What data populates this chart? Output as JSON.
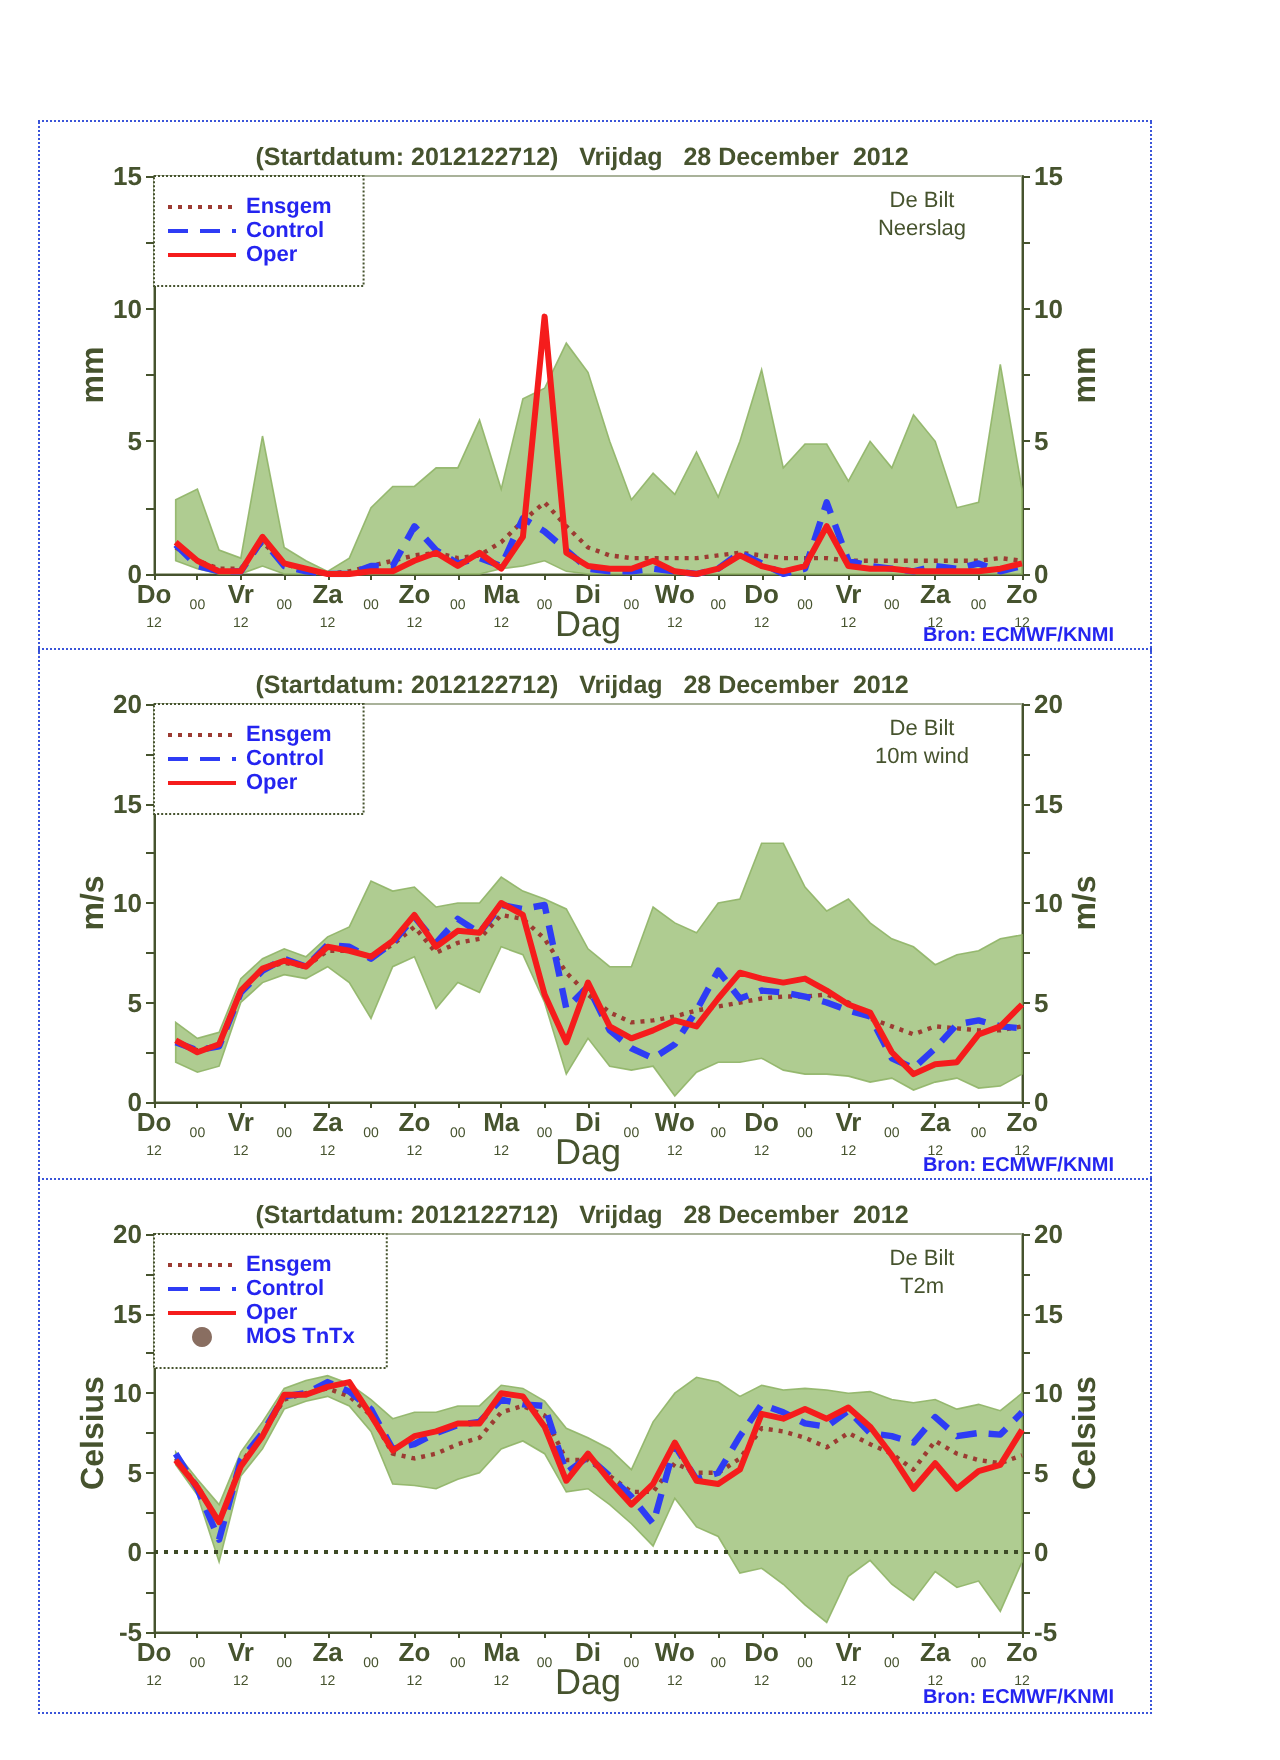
{
  "chart_data": [
    {
      "type": "line",
      "title": "(Startdatum: 2012122712)   Vrijdag   28 December  2012",
      "xlabel": "Dag",
      "ylabel": "mm",
      "y2label": "mm",
      "annotations": [
        "De Bilt",
        "Neerslag",
        "Bron: ECMWF/KNMI"
      ],
      "legend": "top left",
      "categories": [
        "Do\n12",
        null,
        "00",
        null,
        "Vr\n12",
        null,
        "00",
        null,
        "Za\n12",
        null,
        "00",
        null,
        "Zo\n12",
        null,
        "00",
        null,
        "Ma\n12",
        null,
        "00",
        null,
        "Di",
        null,
        "00",
        null,
        "Wo\n12",
        null,
        "00",
        null,
        "Do\n12",
        null,
        "00",
        null,
        "Vr\n12",
        null,
        "00",
        null,
        "Za\n12",
        null,
        "00",
        null,
        "Zo\n12"
      ],
      "ylim": [
        0,
        15
      ],
      "yticks": [
        0,
        {
          "value": 2.5,
          "label": null
        },
        5,
        {
          "value": 7.5,
          "label": null
        },
        10,
        {
          "value": 12.5,
          "label": null
        },
        15
      ],
      "y2lim": [
        0,
        15
      ],
      "y2ticks": [
        0,
        {
          "value": 2.5,
          "label": null
        },
        5,
        {
          "value": 7.5,
          "label": null
        },
        10,
        {
          "value": 12.5,
          "label": null
        },
        15
      ],
      "series": [
        {
          "name": "Ensgem",
          "color": "#9c3b32",
          "line_style": "dotted",
          "values": [
            null,
            1.0,
            0.5,
            0.2,
            0.2,
            1.2,
            0.4,
            0.1,
            0.0,
            0.1,
            0.3,
            0.5,
            0.7,
            0.8,
            0.6,
            0.7,
            1.2,
            2.0,
            2.7,
            1.8,
            1.0,
            0.7,
            0.6,
            0.6,
            0.6,
            0.6,
            0.7,
            0.8,
            0.7,
            0.6,
            0.6,
            0.6,
            0.5,
            0.5,
            0.5,
            0.5,
            0.5,
            0.5,
            0.5,
            0.6,
            0.5
          ],
          "lower": [
            null,
            0.5,
            0.2,
            0,
            0,
            0.3,
            0,
            0,
            0,
            0,
            0,
            0,
            0,
            0,
            0,
            0,
            0.2,
            0.3,
            0.5,
            0.1,
            0,
            0,
            0,
            0,
            0,
            0,
            0,
            0,
            0,
            0,
            0,
            0,
            0,
            0,
            0,
            0,
            0,
            0,
            0,
            0,
            0
          ],
          "upper": [
            null,
            2.8,
            3.2,
            0.9,
            0.6,
            5.2,
            1.0,
            0.5,
            0.1,
            0.6,
            2.5,
            3.3,
            3.3,
            4.0,
            4.0,
            5.8,
            3.2,
            6.6,
            7.0,
            8.7,
            7.6,
            5.0,
            2.8,
            3.8,
            3.0,
            4.6,
            2.9,
            5.0,
            7.7,
            4.0,
            4.9,
            4.9,
            3.5,
            5.0,
            4.0,
            6.0,
            5.0,
            2.5,
            2.7,
            7.9,
            3.2
          ]
        },
        {
          "name": "Control",
          "color": "#2e3cf5",
          "line_style": "dashed",
          "values": [
            null,
            1.1,
            0.3,
            0.1,
            0.1,
            1.3,
            0.3,
            0.1,
            0.0,
            0.0,
            0.3,
            0.3,
            1.8,
            0.9,
            0.4,
            0.6,
            0.3,
            2.1,
            1.6,
            0.9,
            0.2,
            0.1,
            0.1,
            0.2,
            0.1,
            0.0,
            0.2,
            0.8,
            0.4,
            0.0,
            0.2,
            2.7,
            0.5,
            0.3,
            0.2,
            0.1,
            0.3,
            0.2,
            0.4,
            0.1,
            0.3
          ]
        },
        {
          "name": "Oper",
          "color": "#f51c1c",
          "line_style": "solid",
          "values": [
            null,
            1.2,
            0.5,
            0.1,
            0.1,
            1.4,
            0.4,
            0.2,
            0.0,
            0.0,
            0.1,
            0.1,
            0.5,
            0.8,
            0.3,
            0.8,
            0.2,
            1.4,
            9.7,
            0.8,
            0.3,
            0.2,
            0.2,
            0.5,
            0.1,
            0.0,
            0.2,
            0.7,
            0.3,
            0.1,
            0.3,
            1.8,
            0.3,
            0.2,
            0.2,
            0.1,
            0.1,
            0.1,
            0.1,
            0.2,
            0.4
          ]
        }
      ]
    },
    {
      "type": "line",
      "title": "(Startdatum: 2012122712)   Vrijdag   28 December  2012",
      "xlabel": "Dag",
      "ylabel": "m/s",
      "y2label": "m/s",
      "annotations": [
        "De Bilt",
        "10m wind",
        "Bron: ECMWF/KNMI"
      ],
      "legend": "top left",
      "categories": [
        "Do\n12",
        null,
        "00",
        null,
        "Vr\n12",
        null,
        "00",
        null,
        "Za\n12",
        null,
        "00",
        null,
        "Zo\n12",
        null,
        "00",
        null,
        "Ma\n12",
        null,
        "00",
        null,
        "Di",
        null,
        "00",
        null,
        "Wo\n12",
        null,
        "00",
        null,
        "Do\n12",
        null,
        "00",
        null,
        "Vr\n12",
        null,
        "00",
        null,
        "Za\n12",
        null,
        "00",
        null,
        "Zo\n12"
      ],
      "ylim": [
        0,
        20
      ],
      "yticks": [
        0,
        {
          "value": 2.5,
          "label": null
        },
        5,
        {
          "value": 7.5,
          "label": null
        },
        10,
        {
          "value": 12.5,
          "label": null
        },
        15,
        {
          "value": 17.5,
          "label": null
        },
        20
      ],
      "y2lim": [
        0,
        20
      ],
      "y2ticks": [
        0,
        {
          "value": 2.5,
          "label": null
        },
        5,
        {
          "value": 7.5,
          "label": null
        },
        10,
        {
          "value": 12.5,
          "label": null
        },
        15,
        {
          "value": 17.5,
          "label": null
        },
        20
      ],
      "series": [
        {
          "name": "Ensgem",
          "color": "#9c3b32",
          "line_style": "dotted",
          "values": [
            null,
            3.0,
            2.6,
            2.8,
            5.6,
            6.7,
            7.0,
            6.8,
            7.6,
            7.6,
            7.3,
            7.9,
            8.8,
            7.5,
            8.0,
            8.2,
            9.4,
            9.2,
            8.2,
            6.5,
            5.4,
            4.5,
            4.0,
            4.1,
            4.3,
            4.6,
            4.8,
            5.0,
            5.2,
            5.3,
            5.3,
            5.4,
            5.0,
            4.2,
            3.8,
            3.4,
            3.8,
            3.7,
            3.6,
            3.6,
            3.8
          ],
          "lower": [
            null,
            2.0,
            1.5,
            1.8,
            5.0,
            6.0,
            6.4,
            6.2,
            6.8,
            6.0,
            4.2,
            6.8,
            7.3,
            4.7,
            6.0,
            5.5,
            7.8,
            7.4,
            5.0,
            1.4,
            3.2,
            1.8,
            1.6,
            1.8,
            0.3,
            1.5,
            2.0,
            2.0,
            2.2,
            1.6,
            1.4,
            1.4,
            1.3,
            1.0,
            1.2,
            0.6,
            1.0,
            1.2,
            0.7,
            0.8,
            1.4
          ],
          "upper": [
            null,
            4.0,
            3.2,
            3.5,
            6.2,
            7.2,
            7.7,
            7.3,
            8.3,
            8.8,
            11.1,
            10.6,
            10.8,
            9.8,
            10.0,
            10.0,
            11.3,
            10.6,
            10.2,
            9.7,
            7.7,
            6.8,
            6.8,
            9.8,
            9.0,
            8.5,
            10.0,
            10.2,
            13.0,
            13.0,
            10.8,
            9.6,
            10.2,
            9.0,
            8.2,
            7.8,
            6.9,
            7.4,
            7.6,
            8.2,
            8.4
          ]
        },
        {
          "name": "Control",
          "color": "#2e3cf5",
          "line_style": "dashed",
          "values": [
            null,
            3.0,
            2.6,
            2.8,
            5.5,
            6.6,
            7.2,
            6.8,
            7.9,
            7.8,
            7.2,
            8.0,
            9.3,
            8.0,
            9.2,
            8.5,
            9.9,
            9.7,
            9.9,
            4.7,
            5.8,
            3.6,
            2.7,
            2.2,
            2.9,
            4.6,
            6.6,
            5.2,
            5.6,
            5.5,
            5.3,
            5.0,
            4.6,
            4.3,
            2.2,
            1.7,
            2.7,
            3.9,
            4.1,
            3.8,
            3.7
          ]
        },
        {
          "name": "Oper",
          "color": "#f51c1c",
          "line_style": "solid",
          "values": [
            null,
            3.1,
            2.5,
            2.9,
            5.6,
            6.7,
            7.1,
            6.8,
            7.8,
            7.6,
            7.3,
            8.1,
            9.4,
            7.8,
            8.6,
            8.5,
            10.0,
            9.4,
            5.4,
            3.0,
            6.0,
            3.8,
            3.2,
            3.6,
            4.1,
            3.8,
            5.2,
            6.5,
            6.2,
            6.0,
            6.2,
            5.6,
            4.9,
            4.5,
            2.5,
            1.4,
            1.9,
            2.0,
            3.4,
            3.8,
            4.9
          ]
        }
      ]
    },
    {
      "type": "line",
      "title": "(Startdatum: 2012122712)   Vrijdag   28 December  2012",
      "xlabel": "Dag",
      "ylabel": "Celsius",
      "y2label": "Celsius",
      "annotations": [
        "De Bilt",
        "T2m",
        "Bron: ECMWF/KNMI"
      ],
      "legend": "top left",
      "categories": [
        "Do\n12",
        null,
        "00",
        null,
        "Vr\n12",
        null,
        "00",
        null,
        "Za\n12",
        null,
        "00",
        null,
        "Zo\n12",
        null,
        "00",
        null,
        "Ma\n12",
        null,
        "00",
        null,
        "Di",
        null,
        "00",
        null,
        "Wo\n12",
        null,
        "00",
        null,
        "Do\n12",
        null,
        "00",
        null,
        "Vr\n12",
        null,
        "00",
        null,
        "Za\n12",
        null,
        "00",
        null,
        "Zo\n12"
      ],
      "ylim": [
        -5,
        20
      ],
      "yticks": [
        -5,
        {
          "value": -2.5,
          "label": null
        },
        0,
        {
          "value": 2.5,
          "label": null
        },
        5,
        {
          "value": 7.5,
          "label": null
        },
        10,
        {
          "value": 12.5,
          "label": null
        },
        15,
        {
          "value": 17.5,
          "label": null
        },
        20
      ],
      "y2lim": [
        -5,
        20
      ],
      "y2ticks": [
        -5,
        {
          "value": -2.5,
          "label": null
        },
        0,
        {
          "value": 2.5,
          "label": null
        },
        5,
        {
          "value": 7.5,
          "label": null
        },
        10,
        {
          "value": 12.5,
          "label": null
        },
        15,
        {
          "value": 17.5,
          "label": null
        },
        20
      ],
      "ref_lines": [
        {
          "axis": "y",
          "value": 0,
          "color": "#3d4a26",
          "line_style": "dotted"
        }
      ],
      "series": [
        {
          "name": "Ensgem",
          "color": "#9c3b32",
          "line_style": "dotted",
          "values": [
            null,
            5.9,
            4.2,
            1.8,
            5.6,
            7.4,
            9.6,
            10.0,
            10.3,
            9.8,
            8.6,
            6.2,
            5.9,
            6.2,
            6.8,
            7.2,
            8.8,
            9.2,
            8.6,
            5.8,
            5.8,
            4.8,
            3.8,
            3.8,
            5.6,
            5.0,
            5.0,
            5.9,
            7.8,
            7.6,
            7.2,
            6.6,
            7.5,
            6.8,
            6.2,
            5.2,
            7.0,
            6.2,
            5.8,
            5.6,
            6.1
          ],
          "lower": [
            null,
            5.5,
            3.6,
            -0.6,
            4.8,
            6.5,
            9.0,
            9.5,
            9.8,
            9.2,
            7.6,
            4.3,
            4.2,
            4.0,
            4.6,
            5.0,
            6.5,
            7.0,
            6.2,
            3.8,
            4.0,
            3.0,
            1.8,
            0.4,
            3.4,
            1.6,
            1.0,
            -1.3,
            -1.0,
            -2.0,
            -3.3,
            -4.4,
            -1.5,
            -0.5,
            -2.0,
            -3.0,
            -1.2,
            -2.2,
            -1.8,
            -3.7,
            -0.6
          ],
          "upper": [
            null,
            6.3,
            4.6,
            3.0,
            6.3,
            8.2,
            10.3,
            10.8,
            11.1,
            10.6,
            9.6,
            8.4,
            8.8,
            8.8,
            9.2,
            9.2,
            10.5,
            10.3,
            9.5,
            7.8,
            7.2,
            6.5,
            5.2,
            8.2,
            10.0,
            11.0,
            10.7,
            9.8,
            10.5,
            10.2,
            10.3,
            10.2,
            10.0,
            10.1,
            9.6,
            9.4,
            9.6,
            9.0,
            9.3,
            8.9,
            10.0
          ]
        },
        {
          "name": "Control",
          "color": "#2e3cf5",
          "line_style": "dashed",
          "values": [
            null,
            6.2,
            4.0,
            0.8,
            5.8,
            7.5,
            9.8,
            10.0,
            10.7,
            10.1,
            9.0,
            6.5,
            6.8,
            7.5,
            8.0,
            8.2,
            9.6,
            9.3,
            9.2,
            5.0,
            6.0,
            4.8,
            3.5,
            1.8,
            6.7,
            4.6,
            5.0,
            7.3,
            9.3,
            8.8,
            8.1,
            7.9,
            8.9,
            7.5,
            7.3,
            6.9,
            8.5,
            7.3,
            7.5,
            7.4,
            8.8
          ]
        },
        {
          "name": "Oper",
          "color": "#f51c1c",
          "line_style": "solid",
          "values": [
            null,
            5.8,
            4.1,
            1.9,
            5.4,
            7.3,
            9.9,
            9.9,
            10.4,
            10.7,
            8.6,
            6.4,
            7.3,
            7.6,
            8.1,
            8.1,
            10.0,
            9.8,
            7.9,
            4.5,
            6.2,
            4.5,
            3.0,
            4.3,
            6.9,
            4.5,
            4.3,
            5.2,
            8.7,
            8.4,
            9.0,
            8.4,
            9.1,
            7.9,
            6.1,
            4.0,
            5.6,
            4.0,
            5.1,
            5.5,
            7.7
          ]
        },
        {
          "name": "MOS TnTx",
          "type": "scatter",
          "color": "#6b4a3a",
          "marker": "circle",
          "values": [
            null,
            null,
            null,
            null,
            null,
            null,
            null,
            null,
            null,
            null,
            null,
            null,
            null,
            null,
            null,
            null,
            null,
            null,
            null,
            null,
            null,
            null,
            null,
            null,
            null,
            null,
            null,
            null,
            null,
            null,
            null,
            null,
            null,
            null,
            null,
            null,
            null,
            null,
            null,
            null,
            null
          ]
        }
      ]
    }
  ]
}
